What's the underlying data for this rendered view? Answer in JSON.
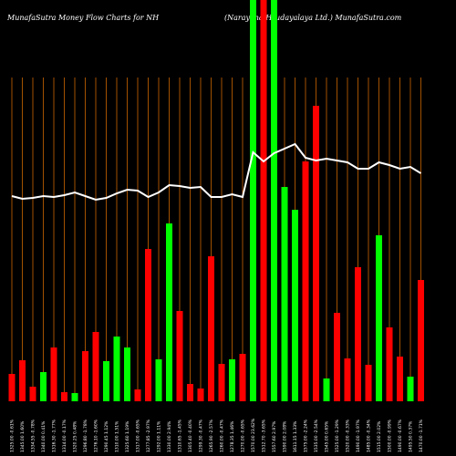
{
  "chart_data": {
    "type": "bar",
    "title": "MunafaSutra  Money Flow  Charts for NH",
    "subtitle": "(Narayana Hrudayalaya Ltd.) MunafaSutra.com",
    "categories": [
      "1325.00 -0.61%",
      "1345.00 1.60%",
      "1334.55 -0.78%",
      "1340.00 0.41%",
      "1316.30 -1.77%",
      "1314.00 -0.17%",
      "1320.25 0.48%",
      "1296.80 -1.78%",
      "1276.10 -1.60%",
      "1290.45 1.12%",
      "1310.00 1.51%",
      "1325.60 1.19%",
      "1317.00 -0.65%",
      "1277.85 -2.97%",
      "1292.00 1.11%",
      "1330.00 2.94%",
      "1310.65 -1.45%",
      "1305.40 -0.40%",
      "1299.30 -0.47%",
      "1265.90 -2.57%",
      "1260.00 -0.47%",
      "1278.35 1.46%",
      "1270.00 -0.65%",
      "1570.00 23.62%",
      "1512.70 -3.65%",
      "1557.60 2.97%",
      "1590.00 2.08%",
      "1611.15 1.33%",
      "1575.00 -2.24%",
      "1535.00 -2.54%",
      "1545.00 0.65%",
      "1525.00 -1.29%",
      "1520.00 -0.33%",
      "1490.00 -1.97%",
      "1485.00 -0.34%",
      "1515.00 2.02%",
      "1500.00 -0.99%",
      "1490.00 -0.67%",
      "1495.50 0.37%",
      "1470.00 -1.71%"
    ],
    "series": [
      {
        "name": "Money Flow",
        "colors": [
          "#ff0000",
          "#ff0000",
          "#ff0000",
          "#00ff00",
          "#ff0000",
          "#ff0000",
          "#00ff00",
          "#ff0000",
          "#ff0000",
          "#00ff00",
          "#00ff00",
          "#00ff00",
          "#ff0000",
          "#ff0000",
          "#00ff00",
          "#00ff00",
          "#ff0000",
          "#ff0000",
          "#ff0000",
          "#ff0000",
          "#ff0000",
          "#00ff00",
          "#ff0000",
          "#00ff00",
          "#ff0000",
          "#00ff00",
          "#00ff00",
          "#00ff00",
          "#ff0000",
          "#ff0000",
          "#00ff00",
          "#ff0000",
          "#ff0000",
          "#ff0000",
          "#ff0000",
          "#00ff00",
          "#ff0000",
          "#ff0000",
          "#00ff00",
          "#ff0000"
        ],
        "values": [
          30,
          45,
          16,
          32,
          59,
          10,
          9,
          55,
          76,
          44,
          71,
          59,
          13,
          167,
          46,
          195,
          99,
          19,
          14,
          159,
          41,
          46,
          52,
          440,
          440,
          440,
          235,
          210,
          263,
          324,
          25,
          97,
          47,
          147,
          40,
          182,
          81,
          49,
          27,
          133
        ]
      },
      {
        "name": "Price",
        "color": "#ffffff",
        "values": [
          225,
          222,
          223,
          225,
          224,
          226,
          229,
          225,
          221,
          223,
          228,
          232,
          231,
          224,
          229,
          237,
          236,
          234,
          235,
          224,
          224,
          227,
          224,
          273,
          263,
          272,
          277,
          282,
          267,
          264,
          266,
          264,
          262,
          255,
          255,
          262,
          259,
          255,
          257,
          250
        ]
      }
    ],
    "ylim": [
      0,
      440
    ],
    "grid": true,
    "grid_color": "#cc6600",
    "background": "#000000"
  }
}
